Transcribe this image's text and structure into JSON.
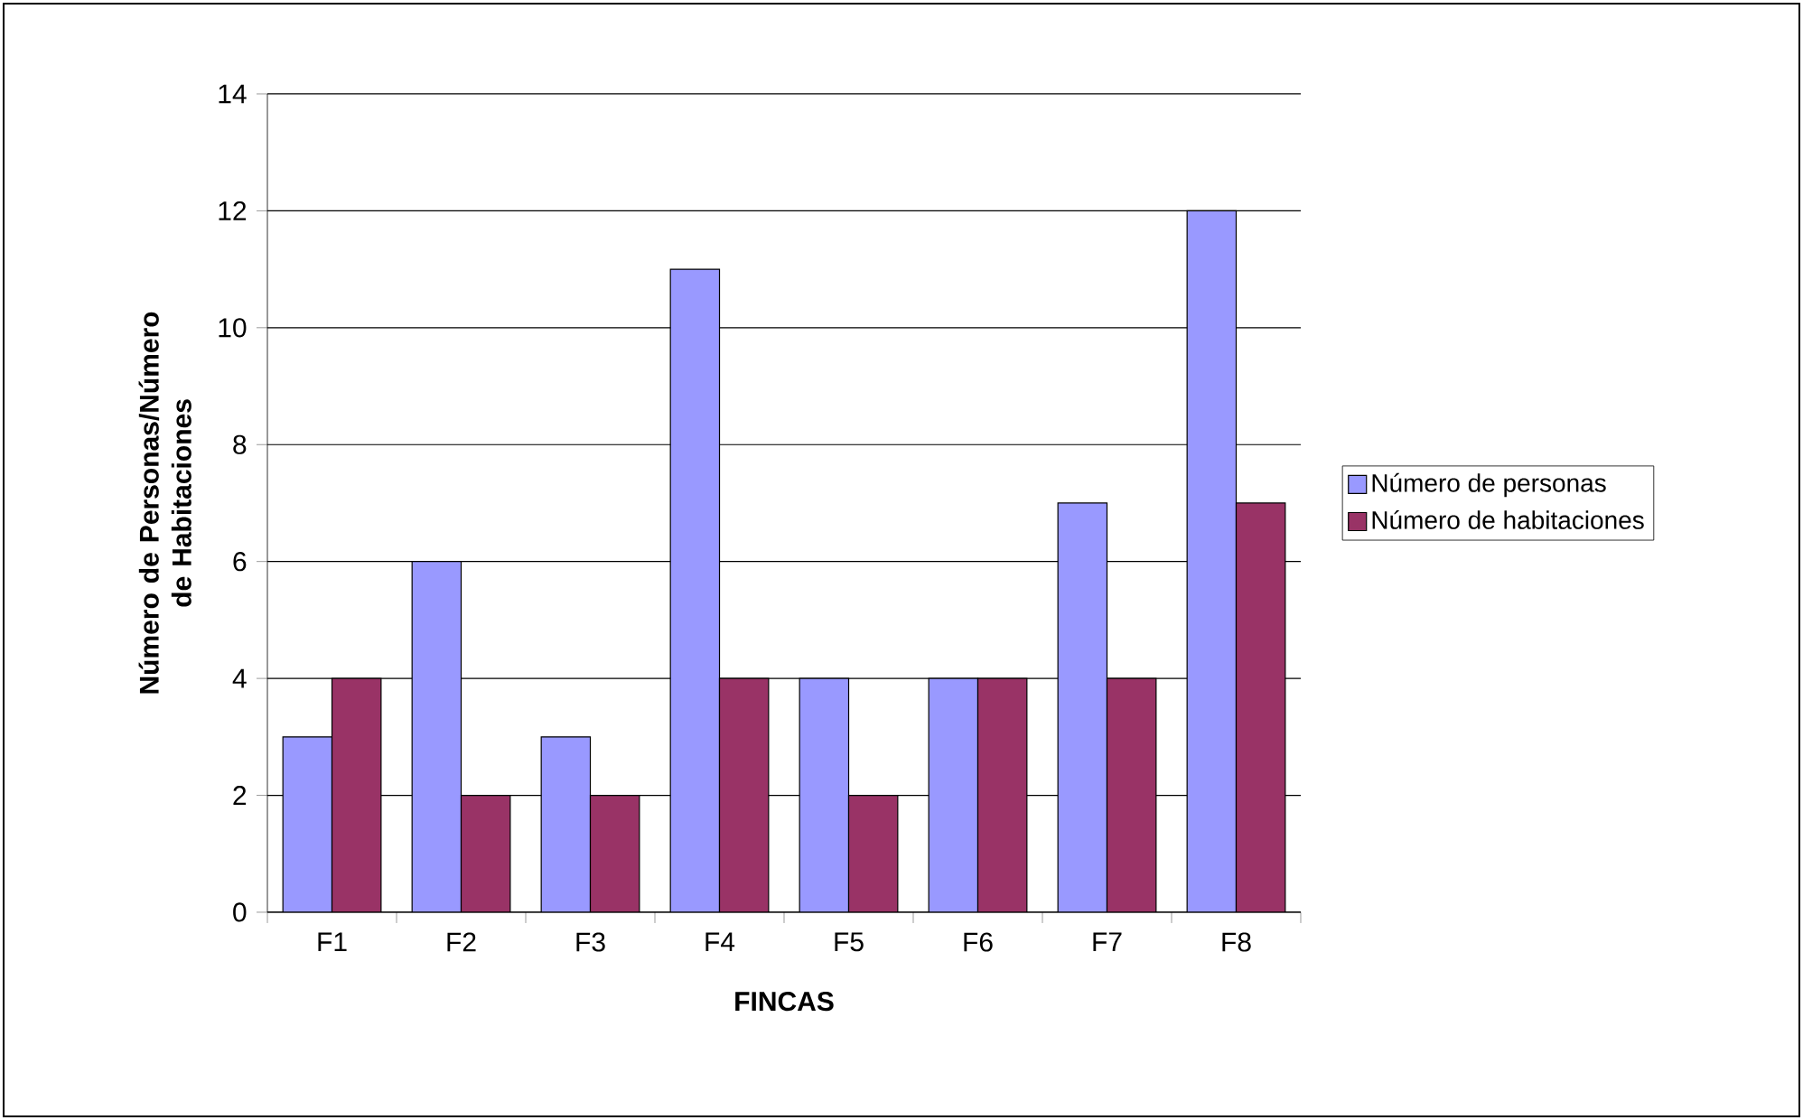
{
  "chart_data": {
    "type": "bar",
    "xlabel": "FINCAS",
    "ylabel": "Número de Personas/Número de Habitaciones",
    "categories": [
      "F1",
      "F2",
      "F3",
      "F4",
      "F5",
      "F6",
      "F7",
      "F8"
    ],
    "series": [
      {
        "name": "Número de personas",
        "color": "#9999ff",
        "values": [
          3,
          6,
          3,
          11,
          4,
          4,
          7,
          12
        ]
      },
      {
        "name": "Número de habitaciones",
        "color": "#993366",
        "values": [
          4,
          2,
          2,
          4,
          2,
          4,
          4,
          7
        ]
      }
    ],
    "ylim": [
      0,
      14
    ],
    "yticks": [
      0,
      2,
      4,
      6,
      8,
      10,
      12,
      14
    ],
    "grid": "y",
    "legend": "right"
  }
}
